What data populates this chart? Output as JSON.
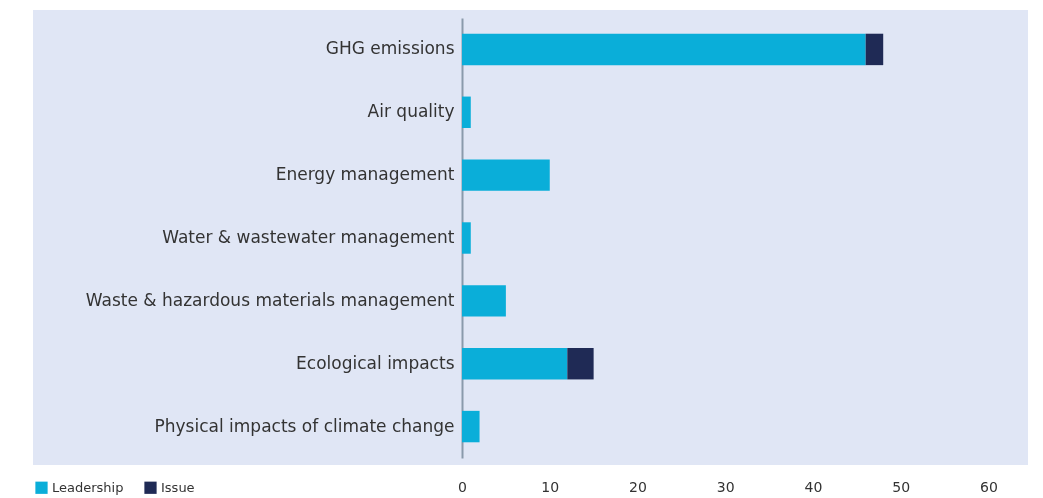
{
  "chart_data": {
    "type": "bar",
    "orientation": "horizontal",
    "stacked": true,
    "categories": [
      "GHG emissions",
      "Air quality",
      "Energy management",
      "Water & wastewater management",
      "Waste & hazardous materials management",
      "Ecological impacts",
      "Physical impacts of climate change"
    ],
    "series": [
      {
        "name": "Leadership",
        "color": "#0aaed9",
        "values": [
          46,
          1,
          10,
          1,
          5,
          12,
          2
        ]
      },
      {
        "name": "Issue",
        "color": "#1f2a55",
        "values": [
          2,
          0,
          0,
          0,
          0,
          3,
          0
        ]
      }
    ],
    "xlim": [
      0,
      64.5
    ],
    "xticks": [
      0,
      10,
      20,
      30,
      40,
      50,
      60
    ],
    "grid": false,
    "legend": "bottom left"
  }
}
